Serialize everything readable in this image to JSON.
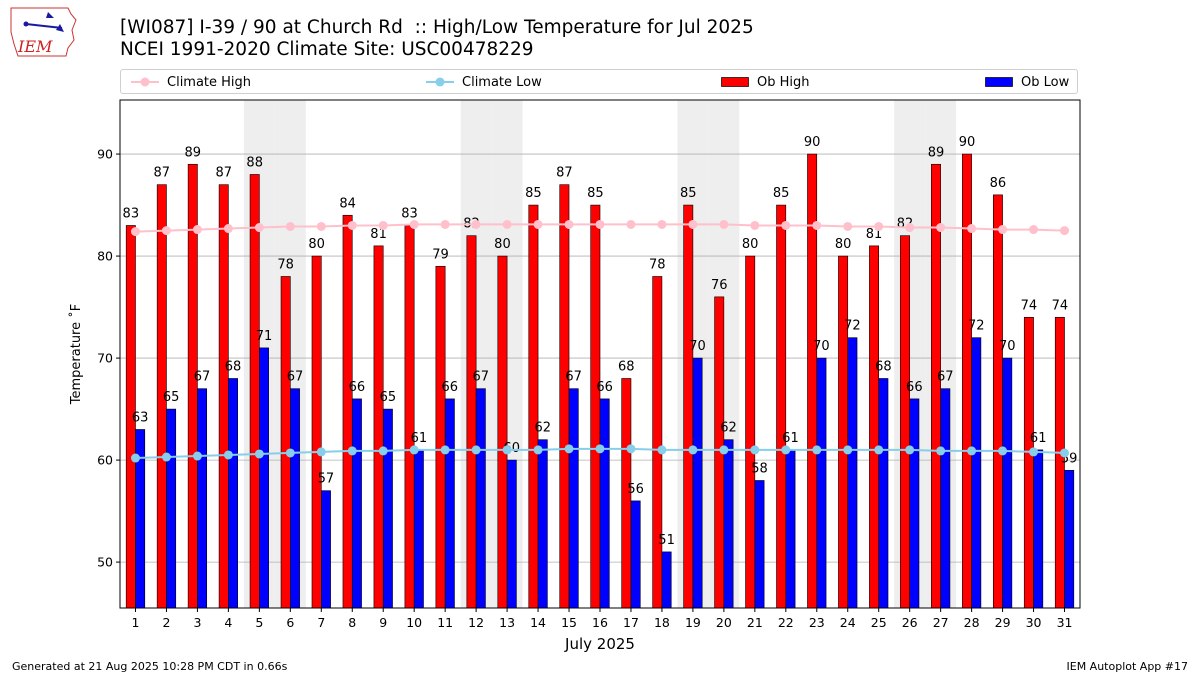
{
  "header": {
    "logo_text": "IEM",
    "title_line1": "[WI087] I-39 / 90 at Church Rd  :: High/Low Temperature for Jul 2025",
    "title_line2": "NCEI 1991-2020 Climate Site: USC00478229"
  },
  "legend": {
    "climate_high": "Climate High",
    "climate_low": "Climate Low",
    "ob_high": "Ob High",
    "ob_low": "Ob Low"
  },
  "colors": {
    "ob_high": "#ff0000",
    "ob_low": "#0000ff",
    "climate_high": "#ffc0cb",
    "climate_low": "#87ceeb",
    "weekend_shade": "#eeeeee",
    "grid": "#b0b0b0"
  },
  "chart_data": {
    "type": "bar",
    "xlabel": "July 2025",
    "ylabel": "Temperature ˚F",
    "ylim": [
      45.5,
      95.3
    ],
    "yticks": [
      50,
      60,
      70,
      80,
      90
    ],
    "grid": "horizontal",
    "legend_position": "top",
    "categories": [
      "1",
      "2",
      "3",
      "4",
      "5",
      "6",
      "7",
      "8",
      "9",
      "10",
      "11",
      "12",
      "13",
      "14",
      "15",
      "16",
      "17",
      "18",
      "19",
      "20",
      "21",
      "22",
      "23",
      "24",
      "25",
      "26",
      "27",
      "28",
      "29",
      "30",
      "31"
    ],
    "shaded_days": [
      5,
      6,
      12,
      13,
      19,
      20,
      26,
      27
    ],
    "series": [
      {
        "name": "Ob High",
        "kind": "bar",
        "labels": true,
        "values": [
          83,
          87,
          89,
          87,
          88,
          78,
          80,
          84,
          81,
          83,
          79,
          82,
          80,
          85,
          87,
          85,
          68,
          78,
          85,
          76,
          80,
          85,
          90,
          80,
          81,
          82,
          89,
          90,
          86,
          74,
          74
        ]
      },
      {
        "name": "Ob Low",
        "kind": "bar",
        "labels": true,
        "values": [
          63,
          65,
          67,
          68,
          71,
          67,
          57,
          66,
          65,
          61,
          66,
          67,
          60,
          62,
          67,
          66,
          56,
          51,
          70,
          62,
          58,
          61,
          70,
          72,
          68,
          66,
          67,
          72,
          70,
          61,
          59
        ]
      },
      {
        "name": "Climate High",
        "kind": "line",
        "values": [
          82.4,
          82.5,
          82.6,
          82.7,
          82.8,
          82.9,
          82.9,
          83.0,
          83.0,
          83.1,
          83.1,
          83.1,
          83.1,
          83.1,
          83.1,
          83.1,
          83.1,
          83.1,
          83.1,
          83.1,
          83.0,
          83.0,
          83.0,
          82.9,
          82.9,
          82.8,
          82.8,
          82.7,
          82.6,
          82.6,
          82.5
        ]
      },
      {
        "name": "Climate Low",
        "kind": "line",
        "values": [
          60.2,
          60.3,
          60.4,
          60.5,
          60.6,
          60.7,
          60.8,
          60.9,
          60.9,
          61.0,
          61.0,
          61.0,
          61.0,
          61.0,
          61.1,
          61.1,
          61.1,
          61.0,
          61.0,
          61.0,
          61.0,
          61.0,
          61.0,
          61.0,
          61.0,
          61.0,
          60.9,
          60.9,
          60.9,
          60.8,
          60.7
        ]
      }
    ]
  },
  "footer": {
    "left": "Generated at 21 Aug 2025 10:28 PM CDT in 0.66s",
    "right": "IEM Autoplot App #17"
  }
}
